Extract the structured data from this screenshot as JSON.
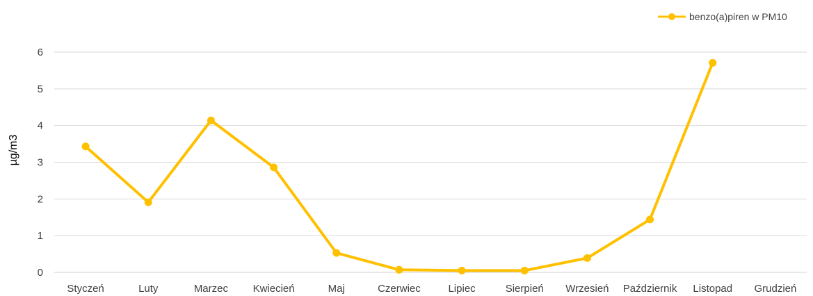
{
  "chart_data": {
    "type": "line",
    "categories": [
      "Styczeń",
      "Luty",
      "Marzec",
      "Kwiecień",
      "Maj",
      "Czerwiec",
      "Lipiec",
      "Sierpień",
      "Wrzesień",
      "Październik",
      "Listopad",
      "Grudzień"
    ],
    "series": [
      {
        "name": "benzo(a)piren w PM10",
        "color": "#FFC000",
        "values": [
          3.43,
          1.91,
          4.14,
          2.86,
          0.53,
          0.07,
          0.05,
          0.05,
          0.39,
          1.44,
          5.71,
          null
        ]
      }
    ],
    "ylabel": "µg/m3",
    "ylim": [
      0,
      6
    ],
    "yticks": [
      0,
      1,
      2,
      3,
      4,
      5,
      6
    ],
    "grid": true,
    "legend_position": "top-right"
  }
}
